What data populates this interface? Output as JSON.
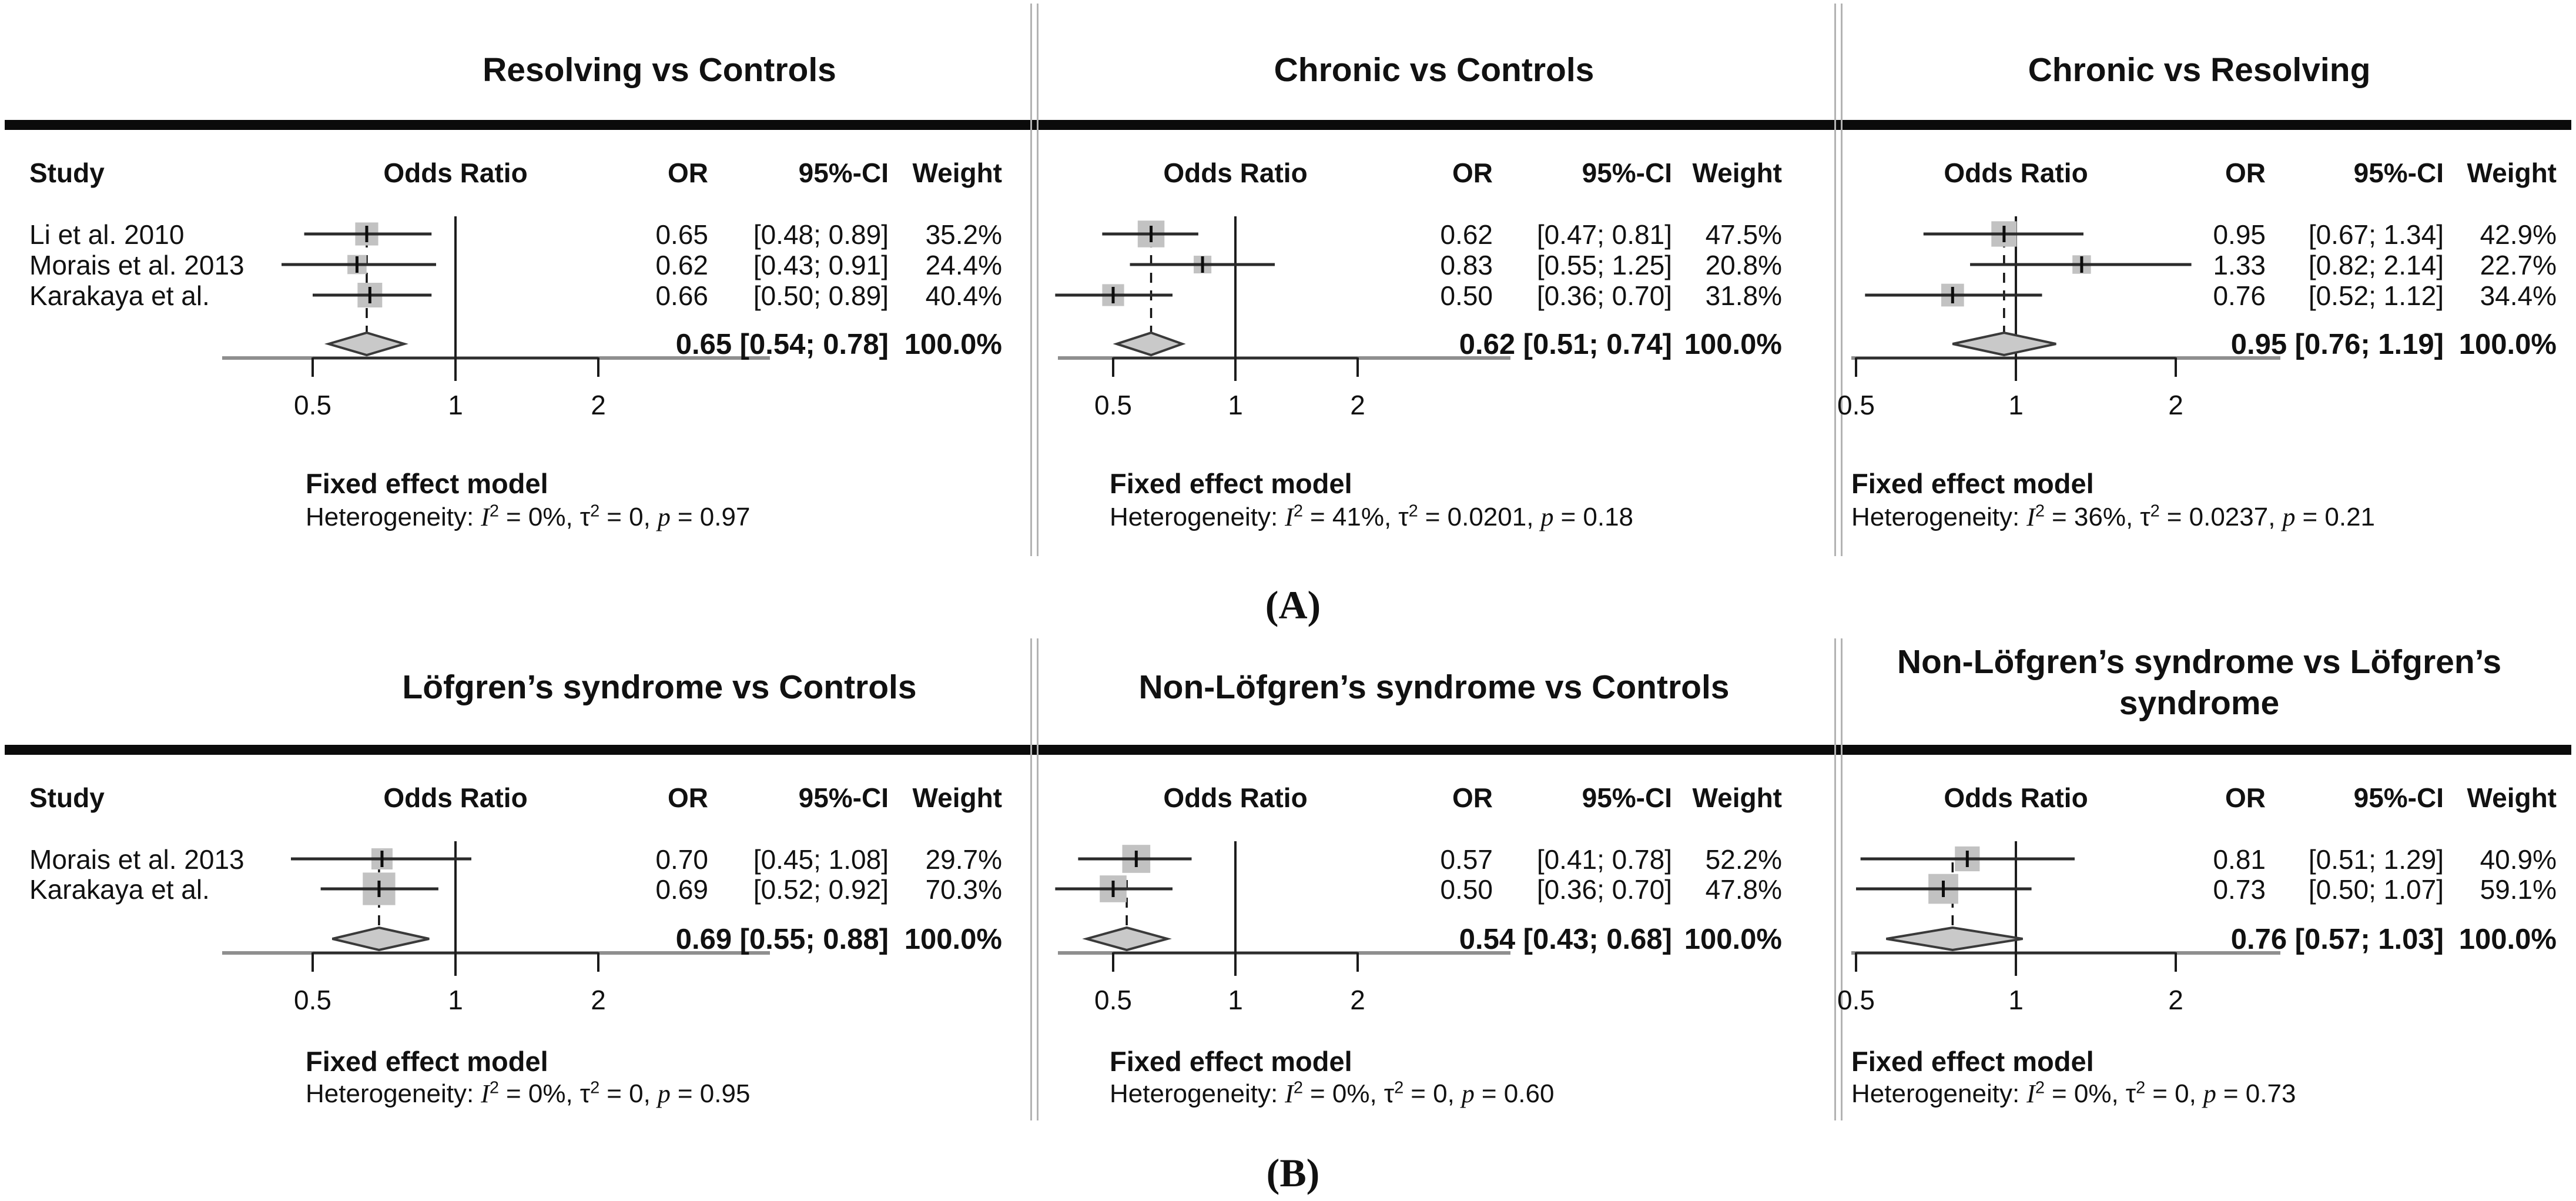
{
  "figure": {
    "section_a_label": "(A)",
    "section_b_label": "(B)"
  },
  "columns": {
    "study": "Study",
    "odds_ratio": "Odds Ratio",
    "or": "OR",
    "ci": "95%-CI",
    "weight": "Weight"
  },
  "model_label": "Fixed effect model",
  "glyphs": {
    "het_label": "Heterogeneity:",
    "i_sym": "I",
    "sup_two": "2",
    "tau_sym": "τ",
    "p_sym": "p"
  },
  "colors": {
    "square_fill": "#c2c2c2",
    "diamond_fill": "#c9c9c9",
    "line": "#2b2b2b",
    "axis_gray": "#8f8f8f",
    "rule_black": "#0b0b0b",
    "divider_gray": "#b3b3b3"
  },
  "chart_data": {
    "type": "forest",
    "x_scale": "log",
    "axis_ticks_values": [
      0.5,
      1,
      2
    ],
    "panels": [
      {
        "title": "Resolving vs Controls",
        "axis": [
          "0.5",
          "1",
          "2"
        ],
        "studies": [
          {
            "name": "Li et al. 2010",
            "or": "0.65",
            "or_value": 0.65,
            "ci": "[0.48; 0.89]",
            "ci_low": 0.48,
            "ci_high": 0.89,
            "weight": "35.2%",
            "weight_value": 35.2
          },
          {
            "name": "Morais et al. 2013",
            "or": "0.62",
            "or_value": 0.62,
            "ci": "[0.43; 0.91]",
            "ci_low": 0.43,
            "ci_high": 0.91,
            "weight": "24.4%",
            "weight_value": 24.4
          },
          {
            "name": "Karakaya et al.",
            "or": "0.66",
            "or_value": 0.66,
            "ci": "[0.50; 0.89]",
            "ci_low": 0.5,
            "ci_high": 0.89,
            "weight": "40.4%",
            "weight_value": 40.4
          }
        ],
        "summary": {
          "or_ci": "0.65 [0.54; 0.78]",
          "weight": "100.0%",
          "or_value": 0.65,
          "ci_low": 0.54,
          "ci_high": 0.78
        },
        "het": {
          "i2": "= 0%,",
          "tau2": "= 0,",
          "p": "= 0.97"
        }
      },
      {
        "title": "Chronic vs Controls",
        "axis": [
          "0.5",
          "1",
          "2"
        ],
        "studies": [
          {
            "name": "",
            "or": "0.62",
            "or_value": 0.62,
            "ci": "[0.47; 0.81]",
            "ci_low": 0.47,
            "ci_high": 0.81,
            "weight": "47.5%",
            "weight_value": 47.5
          },
          {
            "name": "",
            "or": "0.83",
            "or_value": 0.83,
            "ci": "[0.55; 1.25]",
            "ci_low": 0.55,
            "ci_high": 1.25,
            "weight": "20.8%",
            "weight_value": 20.8
          },
          {
            "name": "",
            "or": "0.50",
            "or_value": 0.5,
            "ci": "[0.36; 0.70]",
            "ci_low": 0.36,
            "ci_high": 0.7,
            "weight": "31.8%",
            "weight_value": 31.8
          }
        ],
        "summary": {
          "or_ci": "0.62 [0.51; 0.74]",
          "weight": "100.0%",
          "or_value": 0.62,
          "ci_low": 0.51,
          "ci_high": 0.74
        },
        "het": {
          "i2": "= 41%,",
          "tau2": "= 0.0201,",
          "p": "= 0.18"
        }
      },
      {
        "title": "Chronic vs Resolving",
        "axis": [
          "0.5",
          "1",
          "2"
        ],
        "studies": [
          {
            "name": "",
            "or": "0.95",
            "or_value": 0.95,
            "ci": "[0.67; 1.34]",
            "ci_low": 0.67,
            "ci_high": 1.34,
            "weight": "42.9%",
            "weight_value": 42.9
          },
          {
            "name": "",
            "or": "1.33",
            "or_value": 1.33,
            "ci": "[0.82; 2.14]",
            "ci_low": 0.82,
            "ci_high": 2.14,
            "weight": "22.7%",
            "weight_value": 22.7
          },
          {
            "name": "",
            "or": "0.76",
            "or_value": 0.76,
            "ci": "[0.52; 1.12]",
            "ci_low": 0.52,
            "ci_high": 1.12,
            "weight": "34.4%",
            "weight_value": 34.4
          }
        ],
        "summary": {
          "or_ci": "0.95 [0.76; 1.19]",
          "weight": "100.0%",
          "or_value": 0.95,
          "ci_low": 0.76,
          "ci_high": 1.19
        },
        "het": {
          "i2": "= 36%,",
          "tau2": "= 0.0237,",
          "p": "= 0.21"
        }
      },
      {
        "title": "Löfgren’s syndrome vs Controls",
        "axis": [
          "0.5",
          "1",
          "2"
        ],
        "studies": [
          {
            "name": "Morais et al. 2013",
            "or": "0.70",
            "or_value": 0.7,
            "ci": "[0.45; 1.08]",
            "ci_low": 0.45,
            "ci_high": 1.08,
            "weight": "29.7%",
            "weight_value": 29.7
          },
          {
            "name": "Karakaya et al.",
            "or": "0.69",
            "or_value": 0.69,
            "ci": "[0.52; 0.92]",
            "ci_low": 0.52,
            "ci_high": 0.92,
            "weight": "70.3%",
            "weight_value": 70.3
          }
        ],
        "summary": {
          "or_ci": "0.69 [0.55; 0.88]",
          "weight": "100.0%",
          "or_value": 0.69,
          "ci_low": 0.55,
          "ci_high": 0.88
        },
        "het": {
          "i2": "= 0%,",
          "tau2": "= 0,",
          "p": "= 0.95"
        }
      },
      {
        "title": "Non-Löfgren’s syndrome vs Controls",
        "axis": [
          "0.5",
          "1",
          "2"
        ],
        "studies": [
          {
            "name": "",
            "or": "0.57",
            "or_value": 0.57,
            "ci": "[0.41; 0.78]",
            "ci_low": 0.41,
            "ci_high": 0.78,
            "weight": "52.2%",
            "weight_value": 52.2
          },
          {
            "name": "",
            "or": "0.50",
            "or_value": 0.5,
            "ci": "[0.36; 0.70]",
            "ci_low": 0.36,
            "ci_high": 0.7,
            "weight": "47.8%",
            "weight_value": 47.8
          }
        ],
        "summary": {
          "or_ci": "0.54 [0.43; 0.68]",
          "weight": "100.0%",
          "or_value": 0.54,
          "ci_low": 0.43,
          "ci_high": 0.68
        },
        "het": {
          "i2": "= 0%,",
          "tau2": "= 0,",
          "p": "= 0.60"
        }
      },
      {
        "title": "Non-Löfgren’s syndrome vs Löfgren’s",
        "title_line2": "syndrome",
        "axis": [
          "0.5",
          "1",
          "2"
        ],
        "studies": [
          {
            "name": "",
            "or": "0.81",
            "or_value": 0.81,
            "ci": "[0.51; 1.29]",
            "ci_low": 0.51,
            "ci_high": 1.29,
            "weight": "40.9%",
            "weight_value": 40.9
          },
          {
            "name": "",
            "or": "0.73",
            "or_value": 0.73,
            "ci": "[0.50; 1.07]",
            "ci_low": 0.5,
            "ci_high": 1.07,
            "weight": "59.1%",
            "weight_value": 59.1
          }
        ],
        "summary": {
          "or_ci": "0.76 [0.57; 1.03]",
          "weight": "100.0%",
          "or_value": 0.76,
          "ci_low": 0.57,
          "ci_high": 1.03
        },
        "het": {
          "i2": "= 0%,",
          "tau2": "= 0,",
          "p": "= 0.73"
        }
      }
    ]
  }
}
